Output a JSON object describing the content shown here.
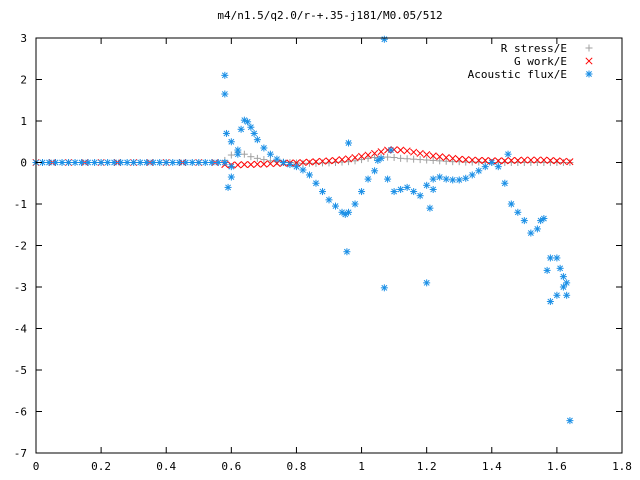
{
  "chart_data": {
    "type": "scatter",
    "title": "m4/n1.5/q2.0/r-+.35-j181/M0.05/512",
    "xlabel": "",
    "ylabel": "",
    "xlim": [
      0,
      1.8
    ],
    "ylim": [
      -7,
      3
    ],
    "x_ticks": [
      0,
      0.2,
      0.4,
      0.6,
      0.8,
      1,
      1.2,
      1.4,
      1.6,
      1.8
    ],
    "x_tick_labels": [
      "0",
      "0.2",
      "0.4",
      "0.6",
      "0.8",
      "1",
      "1.2",
      "1.4",
      "1.6",
      "1.8"
    ],
    "y_ticks": [
      -7,
      -6,
      -5,
      -4,
      -3,
      -2,
      -1,
      0,
      1,
      2,
      3
    ],
    "y_tick_labels": [
      "-7",
      "-6",
      "-5",
      "-4",
      "-3",
      "-2",
      "-1",
      "0",
      "1",
      "2",
      "3"
    ],
    "grid": false,
    "legend_position": "top-right",
    "series": [
      {
        "name": "R stress/E",
        "marker": "plus",
        "color": "#a0a0a0",
        "x": [
          0.58,
          0.6,
          0.62,
          0.64,
          0.66,
          0.68,
          0.7,
          0.72,
          0.74,
          0.76,
          0.78,
          0.8,
          0.82,
          0.84,
          0.86,
          0.88,
          0.9,
          0.92,
          0.94,
          0.96,
          0.98,
          1.0,
          1.02,
          1.04,
          1.06,
          1.08,
          1.1,
          1.12,
          1.14,
          1.16,
          1.18,
          1.2,
          1.22,
          1.24,
          1.26,
          1.28,
          1.3,
          1.32,
          1.34,
          1.36,
          1.38,
          1.4,
          1.42,
          1.44,
          1.46,
          1.48,
          1.5,
          1.52,
          1.54,
          1.56,
          1.58,
          1.6,
          1.62,
          1.64
        ],
        "y": [
          0.05,
          0.18,
          0.25,
          0.2,
          0.14,
          0.1,
          0.07,
          0.04,
          0.02,
          0.01,
          0.0,
          -0.01,
          -0.02,
          -0.02,
          -0.02,
          -0.01,
          -0.01,
          0.0,
          0.01,
          0.02,
          0.04,
          0.07,
          0.1,
          0.12,
          0.13,
          0.13,
          0.12,
          0.1,
          0.09,
          0.08,
          0.07,
          0.06,
          0.05,
          0.04,
          0.03,
          0.02,
          0.02,
          0.01,
          0.01,
          0.01,
          0.0,
          0.0,
          0.0,
          0.0,
          0.0,
          0.0,
          0.0,
          0.0,
          0.0,
          0.0,
          0.0,
          0.0,
          0.0,
          0.0
        ]
      },
      {
        "name": "G work/E",
        "marker": "cross",
        "color": "#ff0000",
        "x": [
          0,
          0.05,
          0.1,
          0.15,
          0.2,
          0.25,
          0.3,
          0.35,
          0.4,
          0.45,
          0.5,
          0.55,
          0.58,
          0.6,
          0.62,
          0.64,
          0.66,
          0.68,
          0.7,
          0.72,
          0.74,
          0.76,
          0.78,
          0.8,
          0.82,
          0.84,
          0.86,
          0.88,
          0.9,
          0.92,
          0.94,
          0.96,
          0.98,
          1.0,
          1.02,
          1.04,
          1.06,
          1.08,
          1.1,
          1.12,
          1.14,
          1.16,
          1.18,
          1.2,
          1.22,
          1.24,
          1.26,
          1.28,
          1.3,
          1.32,
          1.34,
          1.36,
          1.38,
          1.4,
          1.42,
          1.44,
          1.46,
          1.48,
          1.5,
          1.52,
          1.54,
          1.56,
          1.58,
          1.6,
          1.62,
          1.64
        ],
        "y": [
          0,
          0,
          0,
          0,
          0,
          0,
          0,
          0,
          0,
          0,
          0,
          0,
          -0.05,
          -0.06,
          -0.06,
          -0.05,
          -0.05,
          -0.04,
          -0.04,
          -0.03,
          -0.02,
          -0.02,
          -0.01,
          -0.01,
          0.0,
          0.01,
          0.02,
          0.03,
          0.04,
          0.05,
          0.07,
          0.09,
          0.12,
          0.15,
          0.18,
          0.22,
          0.26,
          0.3,
          0.31,
          0.3,
          0.28,
          0.25,
          0.22,
          0.19,
          0.16,
          0.14,
          0.12,
          0.1,
          0.08,
          0.07,
          0.06,
          0.05,
          0.05,
          0.04,
          0.04,
          0.04,
          0.05,
          0.05,
          0.06,
          0.06,
          0.06,
          0.06,
          0.05,
          0.04,
          0.03,
          0.02
        ]
      },
      {
        "name": "Acoustic flux/E",
        "marker": "star",
        "color": "#1a8fe6",
        "x": [
          0,
          0.02,
          0.04,
          0.06,
          0.08,
          0.1,
          0.12,
          0.14,
          0.16,
          0.18,
          0.2,
          0.22,
          0.24,
          0.26,
          0.28,
          0.3,
          0.32,
          0.34,
          0.36,
          0.38,
          0.4,
          0.42,
          0.44,
          0.46,
          0.48,
          0.5,
          0.52,
          0.54,
          0.56,
          0.58,
          0.6,
          0.62,
          0.63,
          0.64,
          0.65,
          0.66,
          0.67,
          0.68,
          0.7,
          0.72,
          0.74,
          0.76,
          0.78,
          0.8,
          0.82,
          0.84,
          0.86,
          0.88,
          0.9,
          0.92,
          0.94,
          0.95,
          0.96,
          0.98,
          1.0,
          1.02,
          1.04,
          1.05,
          1.06,
          1.08,
          1.1,
          1.12,
          1.14,
          1.16,
          1.18,
          1.2,
          1.22,
          1.24,
          1.26,
          1.28,
          1.3,
          1.32,
          1.34,
          1.36,
          1.38,
          1.4,
          1.42,
          1.44,
          1.46,
          1.48,
          1.5,
          1.52,
          1.54,
          1.56,
          1.58,
          1.6,
          1.62,
          0.58,
          0.58,
          0.585,
          0.59,
          0.6,
          0.6,
          0.62,
          0.96,
          0.955,
          1.07,
          1.07,
          1.09,
          1.2,
          1.21,
          1.22,
          1.45,
          1.55,
          1.57,
          1.58,
          1.6,
          1.61,
          1.62,
          1.63,
          1.64,
          1.63
        ],
        "y": [
          0,
          0,
          0,
          0,
          0,
          0,
          0,
          0,
          0,
          0,
          0,
          0,
          0,
          0,
          0,
          0,
          0,
          0,
          0,
          0,
          0,
          0,
          0,
          0,
          0,
          0,
          0,
          0,
          0,
          0.0,
          -0.1,
          0.3,
          0.8,
          1.02,
          0.98,
          0.85,
          0.7,
          0.55,
          0.35,
          0.2,
          0.08,
          0.0,
          -0.05,
          -0.1,
          -0.18,
          -0.3,
          -0.5,
          -0.7,
          -0.9,
          -1.05,
          -1.2,
          -1.25,
          -1.2,
          -1.0,
          -0.7,
          -0.4,
          -0.2,
          0.05,
          0.1,
          -0.4,
          -0.7,
          -0.65,
          -0.6,
          -0.7,
          -0.8,
          -0.55,
          -0.4,
          -0.35,
          -0.4,
          -0.42,
          -0.42,
          -0.38,
          -0.3,
          -0.2,
          -0.1,
          0.0,
          -0.1,
          -0.5,
          -1.0,
          -1.2,
          -1.4,
          -1.7,
          -1.6,
          -1.35,
          -2.3,
          -3.2,
          -3.0,
          2.1,
          1.65,
          0.7,
          -0.6,
          -0.35,
          0.5,
          0.2,
          0.47,
          -2.15,
          2.97,
          -3.02,
          0.3,
          -2.9,
          -1.1,
          -0.65,
          0.2,
          -1.4,
          -2.6,
          -3.35,
          -2.3,
          -2.55,
          -2.75,
          -3.2,
          -6.22,
          -2.9
        ]
      }
    ]
  }
}
